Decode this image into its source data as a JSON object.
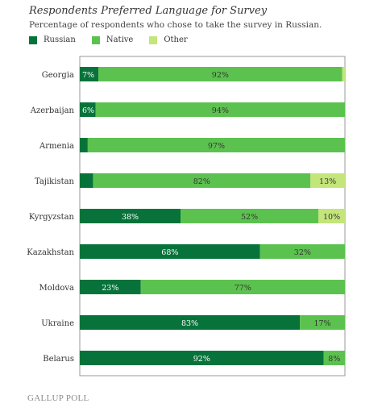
{
  "title": "Respondents Preferred Language for Survey",
  "subtitle": "Percentage of respondents who chose to take the survey in Russian.",
  "source": "GALLUP POLL",
  "colors": {
    "Russian": "#07733a",
    "Native": "#5cc24f",
    "Other": "#c3e57a",
    "grid": "#cccccc",
    "frame": "#999999"
  },
  "chart_data": {
    "type": "bar",
    "orientation": "horizontal",
    "stacked": true,
    "title": "Respondents Preferred Language for Survey",
    "subtitle": "Percentage of respondents who chose to take the survey in Russian.",
    "legend_position": "top-left",
    "xlim": [
      0,
      100
    ],
    "grid": false,
    "categories": [
      "Georgia",
      "Azerbaijan",
      "Armenia",
      "Tajikistan",
      "Kyrgyzstan",
      "Kazakhstan",
      "Moldova",
      "Ukraine",
      "Belarus"
    ],
    "series": [
      {
        "name": "Russian",
        "values": [
          7,
          6,
          3,
          5,
          38,
          68,
          23,
          83,
          92
        ],
        "labels": [
          "7%",
          "6%",
          "",
          "",
          "38%",
          "68%",
          "23%",
          "83%",
          "92%"
        ]
      },
      {
        "name": "Native",
        "values": [
          92,
          94,
          97,
          82,
          52,
          32,
          77,
          17,
          8
        ],
        "labels": [
          "92%",
          "94%",
          "97%",
          "82%",
          "52%",
          "32%",
          "77%",
          "17%",
          "8%"
        ]
      },
      {
        "name": "Other",
        "values": [
          1,
          0,
          0,
          13,
          10,
          0,
          0,
          0,
          0
        ],
        "labels": [
          "",
          "",
          "",
          "13%",
          "10%",
          "",
          "",
          "",
          ""
        ]
      }
    ]
  }
}
